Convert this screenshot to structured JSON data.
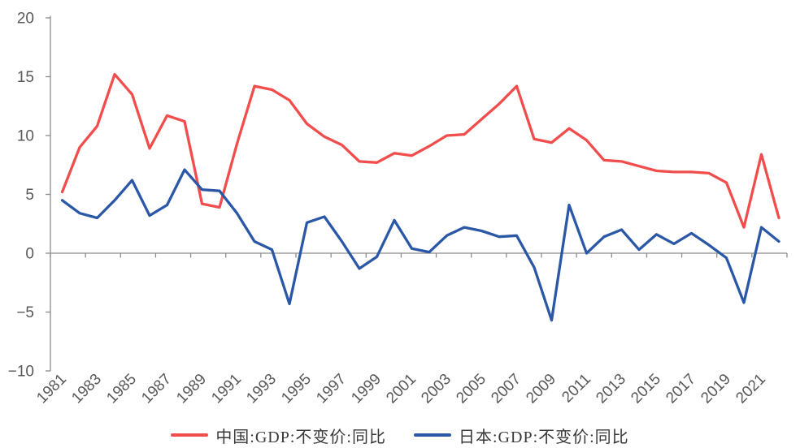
{
  "chart_data": {
    "type": "line",
    "title": "",
    "xlabel": "",
    "ylabel": "",
    "x": [
      1981,
      1982,
      1983,
      1984,
      1985,
      1986,
      1987,
      1988,
      1989,
      1990,
      1991,
      1992,
      1993,
      1994,
      1995,
      1996,
      1997,
      1998,
      1999,
      2000,
      2001,
      2002,
      2003,
      2004,
      2005,
      2006,
      2007,
      2008,
      2009,
      2010,
      2011,
      2012,
      2013,
      2014,
      2015,
      2016,
      2017,
      2018,
      2019,
      2020,
      2021,
      2022
    ],
    "series": [
      {
        "name": "中国:GDP:不变价:同比",
        "color": "#F14D4D",
        "values": [
          5.2,
          9.0,
          10.8,
          15.2,
          13.5,
          8.9,
          11.7,
          11.2,
          4.2,
          3.9,
          9.3,
          14.2,
          13.9,
          13.0,
          11.0,
          9.9,
          9.2,
          7.8,
          7.7,
          8.5,
          8.3,
          9.1,
          10.0,
          10.1,
          11.4,
          12.7,
          14.2,
          9.7,
          9.4,
          10.6,
          9.6,
          7.9,
          7.8,
          7.4,
          7.0,
          6.9,
          6.9,
          6.8,
          6.0,
          2.2,
          8.4,
          3.0
        ]
      },
      {
        "name": "日本:GDP:不变价:同比",
        "color": "#2A57A6",
        "values": [
          4.5,
          3.4,
          3.0,
          4.5,
          6.2,
          3.2,
          4.1,
          7.1,
          5.4,
          5.3,
          3.4,
          1.0,
          0.3,
          -4.3,
          2.6,
          3.1,
          1.0,
          -1.3,
          -0.3,
          2.8,
          0.4,
          0.1,
          1.5,
          2.2,
          1.9,
          1.4,
          1.5,
          -1.2,
          -5.7,
          4.1,
          0.0,
          1.4,
          2.0,
          0.3,
          1.6,
          0.8,
          1.7,
          0.7,
          -0.4,
          -4.2,
          2.2,
          1.0
        ]
      }
    ],
    "ylim": [
      -10,
      20
    ],
    "yticks": [
      20,
      15,
      10,
      5,
      0,
      -5,
      -10
    ],
    "xtick_labels": [
      "1981",
      "1983",
      "1985",
      "1987",
      "1989",
      "1991",
      "1993",
      "1995",
      "1997",
      "1999",
      "2001",
      "2003",
      "2005",
      "2007",
      "2009",
      "2011",
      "2013",
      "2015",
      "2017",
      "2019",
      "2021"
    ],
    "grid": false,
    "legend_position": "bottom",
    "axis_color": "#8C8C8C",
    "label_color": "#595959"
  }
}
